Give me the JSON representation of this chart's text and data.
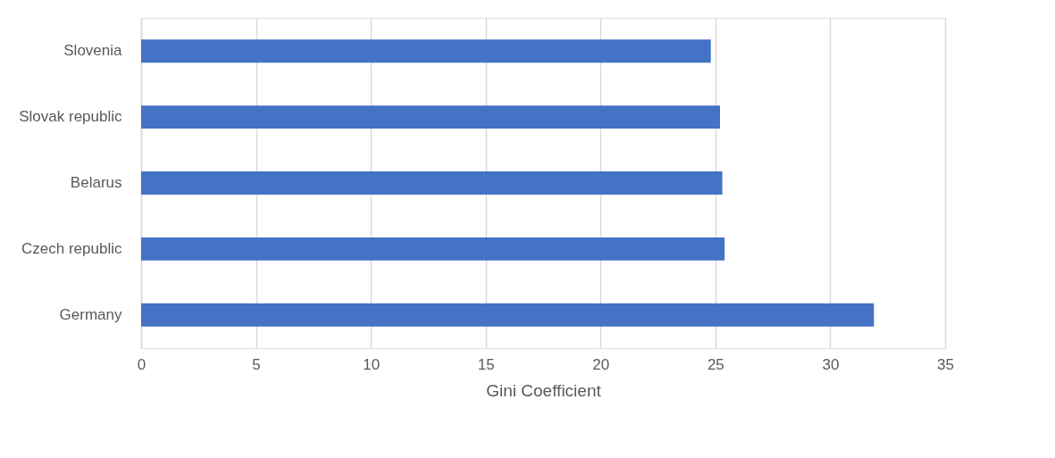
{
  "chart_data": {
    "type": "bar",
    "orientation": "horizontal",
    "xlabel": "Gini Coefficient",
    "categories": [
      "Slovenia",
      "Slovak republic",
      "Belarus",
      "Czech republic",
      "Germany"
    ],
    "values": [
      24.8,
      25.2,
      25.3,
      25.4,
      31.9
    ],
    "color": "#4472c4",
    "xlim": [
      0,
      35
    ],
    "xticks": [
      0,
      5,
      10,
      15,
      20,
      25,
      30,
      35
    ],
    "grid": "x"
  }
}
